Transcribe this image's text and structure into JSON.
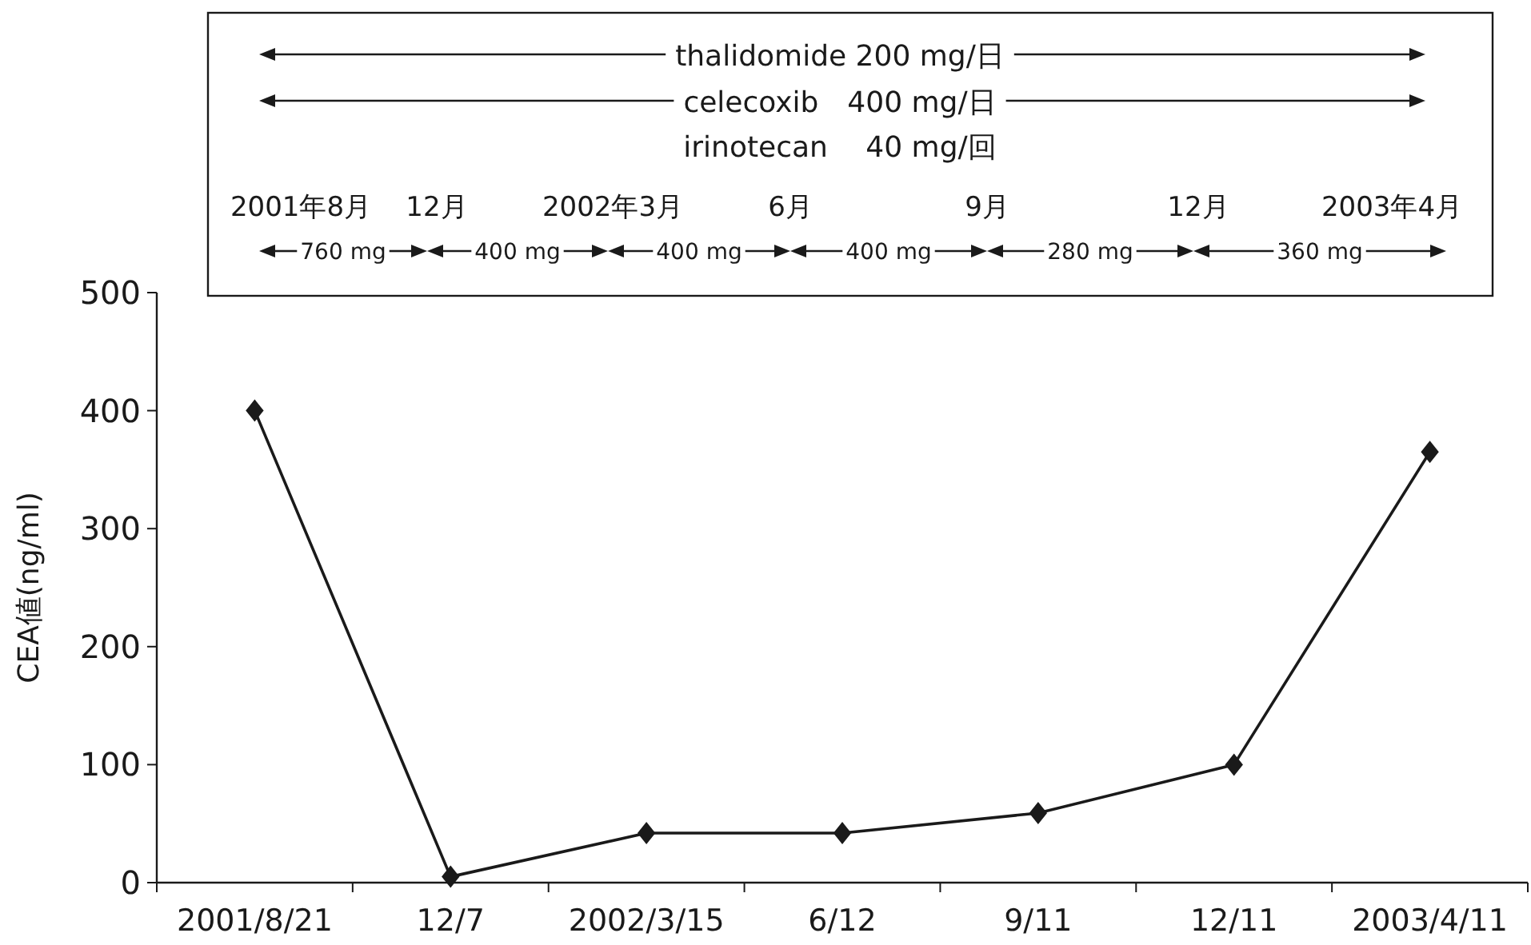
{
  "chart_data": {
    "type": "line",
    "ylabel": "CEA値(ng/ml)",
    "categories": [
      "2001/8/21",
      "12/7",
      "2002/3/15",
      "6/12",
      "9/11",
      "12/11",
      "2003/4/11"
    ],
    "series": [
      {
        "color": "#1a1a1a",
        "values": [
          400,
          5,
          42,
          42,
          59,
          100,
          365
        ]
      }
    ],
    "marker": "diamond",
    "line_style": "solid",
    "ylim": [
      0,
      500
    ],
    "yticks": [
      0,
      100,
      200,
      300,
      400,
      500
    ],
    "annotations": [
      "thalidomide 200 mg/日",
      "celecoxib　400 mg/日",
      "irinotecan　 40 mg/回",
      "2001年8月",
      "12月",
      "2002年3月",
      "6月",
      "9月",
      "12月",
      "2003年4月",
      "760 mg",
      "400 mg",
      "400 mg",
      "400 mg",
      "280 mg",
      "360 mg"
    ]
  }
}
